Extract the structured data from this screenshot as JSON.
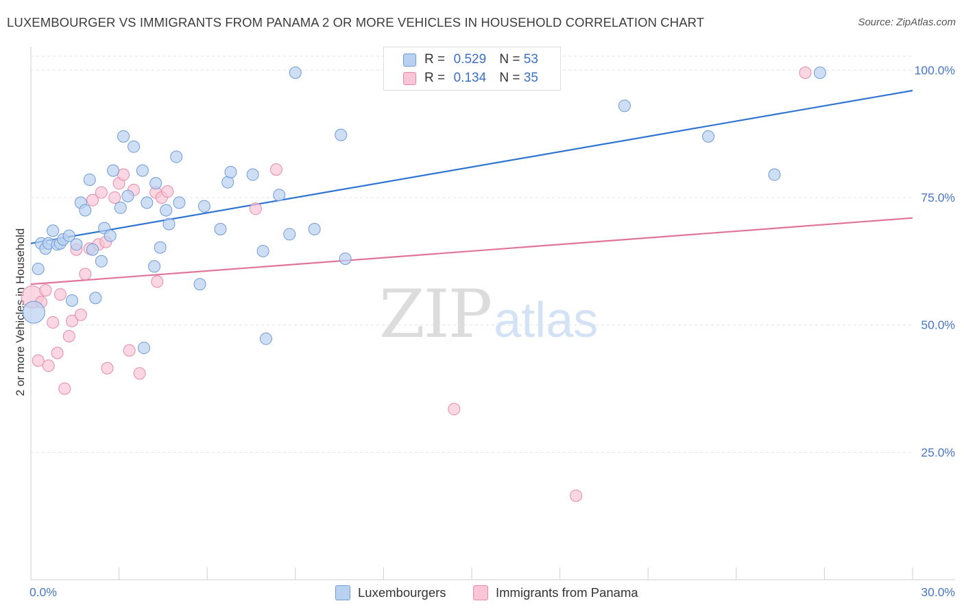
{
  "title": "LUXEMBOURGER VS IMMIGRANTS FROM PANAMA 2 OR MORE VEHICLES IN HOUSEHOLD CORRELATION CHART",
  "source": "Source: ZipAtlas.com",
  "watermark": {
    "zip": "ZIP",
    "atlas": "atlas"
  },
  "legend": {
    "r_label": "R =",
    "n_label": "N =",
    "rows": [
      {
        "r": "0.529",
        "n": "53"
      },
      {
        "r": "0.134",
        "n": "35"
      }
    ]
  },
  "bottom_legend": [
    "Luxembourgers",
    "Immigrants from Panama"
  ],
  "colors": {
    "blue_fill": "#b9d1f1",
    "blue_stroke": "#6f9ad6",
    "blue_line": "#2f74d0",
    "pink_fill": "#f8c6d6",
    "pink_stroke": "#e58aa8",
    "pink_line": "#e0739a",
    "tick_text": "#4a78c2"
  },
  "chart_data": {
    "type": "scatter",
    "title": "LUXEMBOURGER VS IMMIGRANTS FROM PANAMA 2 OR MORE VEHICLES IN HOUSEHOLD CORRELATION CHART",
    "xlabel": "",
    "ylabel": "2 or more Vehicles in Household",
    "xlim": [
      0,
      30
    ],
    "ylim": [
      0,
      103
    ],
    "x_tick_labels": [
      "0.0%",
      "30.0%"
    ],
    "y_ticks": [
      25,
      50,
      75,
      100
    ],
    "y_tick_labels": [
      "25.0%",
      "50.0%",
      "75.0%",
      "100.0%"
    ],
    "grid": true,
    "legend_position": "top-center",
    "series": [
      {
        "name": "Luxembourgers",
        "r": 0.529,
        "n": 53,
        "trend": {
          "x": [
            0,
            30
          ],
          "y": [
            66.0,
            96.0
          ]
        },
        "points": [
          {
            "x": 0.1,
            "y": 52.5,
            "size": 16
          },
          {
            "x": 0.25,
            "y": 61.0
          },
          {
            "x": 0.35,
            "y": 66.0
          },
          {
            "x": 0.5,
            "y": 65.0
          },
          {
            "x": 0.6,
            "y": 66.0
          },
          {
            "x": 0.75,
            "y": 68.5
          },
          {
            "x": 0.9,
            "y": 65.8
          },
          {
            "x": 1.0,
            "y": 66.0
          },
          {
            "x": 1.1,
            "y": 66.8
          },
          {
            "x": 1.3,
            "y": 67.5
          },
          {
            "x": 1.4,
            "y": 54.8
          },
          {
            "x": 1.55,
            "y": 65.8
          },
          {
            "x": 1.7,
            "y": 74.0
          },
          {
            "x": 1.85,
            "y": 72.5
          },
          {
            "x": 2.0,
            "y": 78.5
          },
          {
            "x": 2.1,
            "y": 64.8
          },
          {
            "x": 2.2,
            "y": 55.3
          },
          {
            "x": 2.4,
            "y": 62.5
          },
          {
            "x": 2.5,
            "y": 69.0
          },
          {
            "x": 2.7,
            "y": 67.5
          },
          {
            "x": 2.8,
            "y": 80.3
          },
          {
            "x": 3.05,
            "y": 73.0
          },
          {
            "x": 3.15,
            "y": 87.0
          },
          {
            "x": 3.3,
            "y": 75.3
          },
          {
            "x": 3.5,
            "y": 85.0
          },
          {
            "x": 3.8,
            "y": 80.3
          },
          {
            "x": 3.85,
            "y": 45.5
          },
          {
            "x": 3.95,
            "y": 74.0
          },
          {
            "x": 4.2,
            "y": 61.5
          },
          {
            "x": 4.25,
            "y": 77.8
          },
          {
            "x": 4.4,
            "y": 65.2
          },
          {
            "x": 4.6,
            "y": 72.5
          },
          {
            "x": 4.7,
            "y": 69.8
          },
          {
            "x": 4.95,
            "y": 83.0
          },
          {
            "x": 5.05,
            "y": 74.0
          },
          {
            "x": 5.75,
            "y": 58.0
          },
          {
            "x": 5.9,
            "y": 73.3
          },
          {
            "x": 6.45,
            "y": 68.8
          },
          {
            "x": 6.7,
            "y": 78.0
          },
          {
            "x": 6.8,
            "y": 80.0
          },
          {
            "x": 7.55,
            "y": 79.5
          },
          {
            "x": 7.9,
            "y": 64.5
          },
          {
            "x": 8.0,
            "y": 47.3
          },
          {
            "x": 8.45,
            "y": 75.5
          },
          {
            "x": 8.8,
            "y": 67.8
          },
          {
            "x": 9.0,
            "y": 99.5
          },
          {
            "x": 9.65,
            "y": 68.8
          },
          {
            "x": 10.55,
            "y": 87.3
          },
          {
            "x": 10.7,
            "y": 63.0
          },
          {
            "x": 20.2,
            "y": 93.0
          },
          {
            "x": 23.05,
            "y": 87.0
          },
          {
            "x": 25.3,
            "y": 79.5
          },
          {
            "x": 26.85,
            "y": 99.5
          }
        ]
      },
      {
        "name": "Immigrants from Panama",
        "r": 0.134,
        "n": 35,
        "trend": {
          "x": [
            0,
            30
          ],
          "y": [
            58.0,
            71.0
          ]
        },
        "points": [
          {
            "x": 0.05,
            "y": 55.5,
            "size": 16
          },
          {
            "x": 0.25,
            "y": 43.0
          },
          {
            "x": 0.35,
            "y": 54.5
          },
          {
            "x": 0.5,
            "y": 56.8
          },
          {
            "x": 0.6,
            "y": 42.0
          },
          {
            "x": 0.75,
            "y": 50.5
          },
          {
            "x": 0.9,
            "y": 44.5
          },
          {
            "x": 1.0,
            "y": 56.0
          },
          {
            "x": 1.15,
            "y": 37.5
          },
          {
            "x": 1.3,
            "y": 47.8
          },
          {
            "x": 1.4,
            "y": 50.8
          },
          {
            "x": 1.55,
            "y": 64.8
          },
          {
            "x": 1.7,
            "y": 52.0
          },
          {
            "x": 1.85,
            "y": 60.0
          },
          {
            "x": 2.0,
            "y": 65.0
          },
          {
            "x": 2.1,
            "y": 74.5
          },
          {
            "x": 2.3,
            "y": 65.8
          },
          {
            "x": 2.4,
            "y": 76.0
          },
          {
            "x": 2.55,
            "y": 66.3
          },
          {
            "x": 2.6,
            "y": 41.5
          },
          {
            "x": 2.85,
            "y": 75.0
          },
          {
            "x": 3.0,
            "y": 77.8
          },
          {
            "x": 3.15,
            "y": 79.5
          },
          {
            "x": 3.35,
            "y": 45.0
          },
          {
            "x": 3.5,
            "y": 76.5
          },
          {
            "x": 3.7,
            "y": 40.5
          },
          {
            "x": 4.25,
            "y": 76.0
          },
          {
            "x": 4.3,
            "y": 58.5
          },
          {
            "x": 4.45,
            "y": 75.0
          },
          {
            "x": 4.65,
            "y": 76.2
          },
          {
            "x": 7.65,
            "y": 72.8
          },
          {
            "x": 8.35,
            "y": 80.5
          },
          {
            "x": 14.4,
            "y": 33.5
          },
          {
            "x": 18.55,
            "y": 16.5
          },
          {
            "x": 26.35,
            "y": 99.5
          }
        ]
      }
    ]
  }
}
